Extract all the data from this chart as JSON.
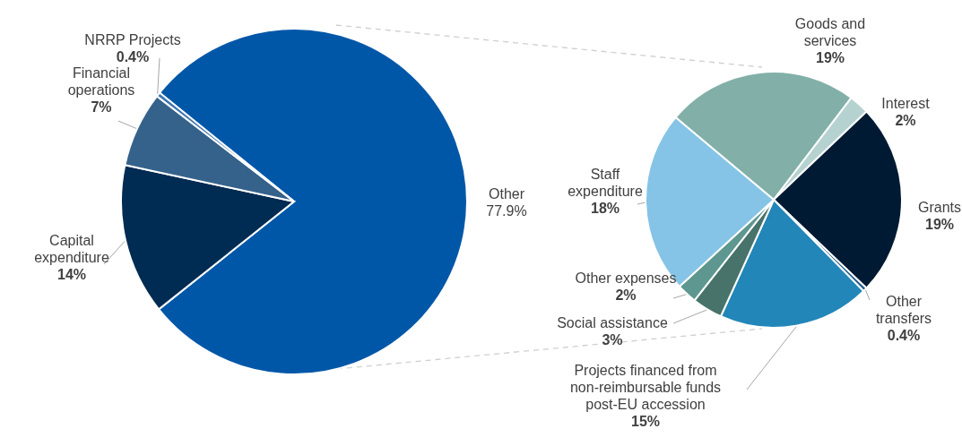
{
  "chart_data": [
    {
      "type": "pie",
      "categories": [
        "Other",
        "Capital expenditure",
        "Financial operations",
        "NRRP Projects"
      ],
      "values": [
        77.9,
        14,
        7,
        0.4
      ],
      "value_labels": [
        "77.9%",
        "14%",
        "7%",
        "0.4%"
      ],
      "colors": [
        "#0057a8",
        "#002b52",
        "#35628a",
        "#3d74b0"
      ]
    },
    {
      "type": "pie",
      "categories": [
        "Goods and services",
        "Interest",
        "Grants",
        "Other transfers",
        "Projects financed from non-reimbursable funds post-EU accession",
        "Social assistance",
        "Other expenses",
        "Staff expenditure"
      ],
      "values": [
        19,
        2,
        19,
        0.4,
        15,
        3,
        2,
        18
      ],
      "value_labels": [
        "19%",
        "2%",
        "19%",
        "0.4%",
        "15%",
        "3%",
        "2%",
        "18%"
      ],
      "colors": [
        "#82b0a8",
        "#b5d2d0",
        "#001a33",
        "#1f5a8a",
        "#2286b8",
        "#47736a",
        "#5e978f",
        "#85c4e6"
      ]
    }
  ]
}
